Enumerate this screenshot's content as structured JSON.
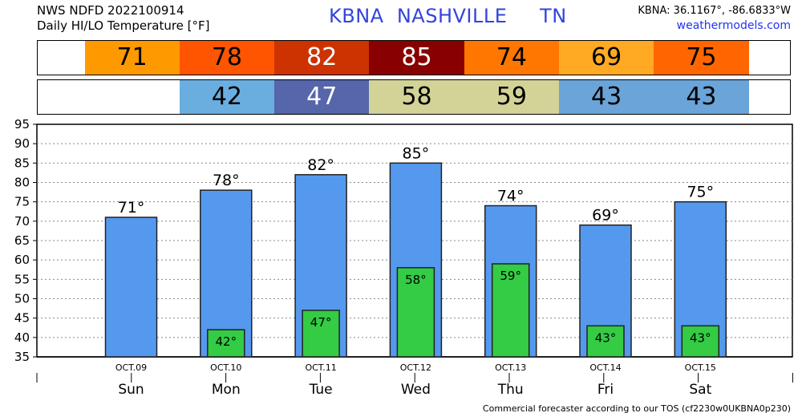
{
  "header": {
    "line1": "NWS NDFD 2022100914",
    "line2": "Daily HI/LO Temperature [°F]",
    "station_title": "KBNA  NASHVILLE     TN",
    "coords": "KBNA: 36.1167°, -86.6833°W",
    "site": "weathermodels.com"
  },
  "footer": "Commercial forecaster according to our TOS (cf2230w0UKBNA0p230)",
  "colors": {
    "hi_bar": "#5599ee",
    "lo_bar": "#33cc44"
  },
  "hi_strip": [
    {
      "value": "71",
      "color": "#ff9900",
      "text_color": "#000000"
    },
    {
      "value": "78",
      "color": "#ff5500",
      "text_color": "#000000"
    },
    {
      "value": "82",
      "color": "#cc3300",
      "text_color": "#ffffff"
    },
    {
      "value": "85",
      "color": "#880000",
      "text_color": "#ffffff"
    },
    {
      "value": "74",
      "color": "#ff7700",
      "text_color": "#000000"
    },
    {
      "value": "69",
      "color": "#ffaa22",
      "text_color": "#000000"
    },
    {
      "value": "75",
      "color": "#ff6600",
      "text_color": "#000000"
    }
  ],
  "lo_strip": [
    {
      "value": "",
      "color": "#ffffff",
      "text_color": "#000000"
    },
    {
      "value": "42",
      "color": "#6aaee0",
      "text_color": "#000000"
    },
    {
      "value": "47",
      "color": "#5566aa",
      "text_color": "#ffffff"
    },
    {
      "value": "58",
      "color": "#d3d398",
      "text_color": "#000000"
    },
    {
      "value": "59",
      "color": "#d3d398",
      "text_color": "#000000"
    },
    {
      "value": "43",
      "color": "#6aa4d8",
      "text_color": "#000000"
    },
    {
      "value": "43",
      "color": "#6aa4d8",
      "text_color": "#000000"
    }
  ],
  "chart_data": {
    "type": "bar",
    "categories": [
      "OCT.09",
      "OCT.10",
      "OCT.11",
      "OCT.12",
      "OCT.13",
      "OCT.14",
      "OCT.15"
    ],
    "days": [
      "Sun",
      "Mon",
      "Tue",
      "Wed",
      "Thu",
      "Fri",
      "Sat"
    ],
    "series": [
      {
        "values": [
          71,
          78,
          82,
          85,
          74,
          69,
          75
        ]
      },
      {
        "values": [
          null,
          42,
          47,
          58,
          59,
          43,
          43
        ]
      }
    ],
    "hi_labels": [
      "71°",
      "78°",
      "82°",
      "85°",
      "74°",
      "69°",
      "75°"
    ],
    "lo_labels": [
      "",
      "42°",
      "47°",
      "58°",
      "59°",
      "43°",
      "43°"
    ],
    "ylim": [
      35,
      95
    ],
    "yticks": [
      "35",
      "40",
      "45",
      "50",
      "55",
      "60",
      "65",
      "70",
      "75",
      "80",
      "85",
      "90",
      "95"
    ],
    "grid": true
  }
}
